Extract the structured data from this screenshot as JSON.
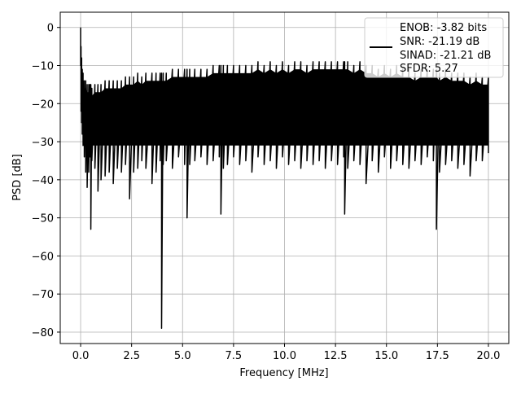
{
  "chart_data": {
    "type": "line",
    "xlabel": "Frequency [MHz]",
    "ylabel": "PSD [dB]",
    "xlim": [
      -1.0,
      21.0
    ],
    "ylim": [
      -83.0,
      4.0
    ],
    "xticks": [
      0.0,
      2.5,
      5.0,
      7.5,
      10.0,
      12.5,
      15.0,
      17.5,
      20.0
    ],
    "xtick_labels": [
      "0.0",
      "2.5",
      "5.0",
      "7.5",
      "10.0",
      "12.5",
      "15.0",
      "17.5",
      "20.0"
    ],
    "yticks": [
      0,
      -10,
      -20,
      -30,
      -40,
      -50,
      -60,
      -70,
      -80
    ],
    "ytick_labels": [
      "0",
      "−10",
      "−20",
      "−30",
      "−40",
      "−50",
      "−60",
      "−70",
      "−80"
    ],
    "grid": true,
    "legend_placement": "top-right",
    "legend_entries": [
      "ENOB: -3.82 bits",
      "SNR: -21.19 dB",
      "SINAD: -21.21 dB",
      "SFDR: 5.27"
    ],
    "series": [
      {
        "color": "#000000",
        "x": [
          0.0,
          0.02,
          0.05,
          0.08,
          0.12,
          0.18,
          0.25,
          0.32,
          0.4,
          0.45,
          0.5,
          0.55,
          0.7,
          0.85,
          1.0,
          1.2,
          1.4,
          1.6,
          1.8,
          2.0,
          2.2,
          2.4,
          2.6,
          2.8,
          3.0,
          3.2,
          3.5,
          3.7,
          3.9,
          3.97,
          4.05,
          4.2,
          4.5,
          4.8,
          5.1,
          5.22,
          5.35,
          5.6,
          5.9,
          6.2,
          6.5,
          6.8,
          6.88,
          7.0,
          7.2,
          7.5,
          7.8,
          8.1,
          8.4,
          8.7,
          9.0,
          9.3,
          9.6,
          9.9,
          10.2,
          10.5,
          10.8,
          11.1,
          11.4,
          11.7,
          12.0,
          12.3,
          12.6,
          12.9,
          12.95,
          13.1,
          13.4,
          13.7,
          14.0,
          14.3,
          14.6,
          14.9,
          15.2,
          15.5,
          15.8,
          16.1,
          16.4,
          16.7,
          17.0,
          17.3,
          17.45,
          17.6,
          17.9,
          18.2,
          18.5,
          18.8,
          19.1,
          19.4,
          19.7,
          20.0
        ],
        "upper": [
          0.0,
          -5,
          -8,
          -11,
          -12,
          -14,
          -14,
          -15,
          -15,
          -15,
          -15,
          -16,
          -15,
          -15,
          -15,
          -14,
          -14,
          -14,
          -14,
          -14,
          -13,
          -13,
          -13,
          -12,
          -13,
          -12,
          -12,
          -12,
          -12,
          -12,
          -12,
          -12,
          -11,
          -11,
          -11,
          -11,
          -11,
          -11,
          -11,
          -11,
          -10,
          -10,
          -10,
          -10,
          -10,
          -10,
          -10,
          -10,
          -10,
          -9,
          -10,
          -9,
          -10,
          -9,
          -10,
          -9,
          -9,
          -10,
          -9,
          -9,
          -9,
          -9,
          -9,
          -9,
          -9,
          -9,
          -10,
          -9,
          -10,
          -10,
          -11,
          -10,
          -11,
          -10,
          -11,
          -11,
          -12,
          -11,
          -11,
          -11,
          -11,
          -12,
          -11,
          -12,
          -12,
          -12,
          -13,
          -12,
          -13,
          -13
        ],
        "lower": [
          -10,
          -22,
          -25,
          -28,
          -31,
          -34,
          -38,
          -42,
          -38,
          -34,
          -53,
          -35,
          -37,
          -43,
          -40,
          -39,
          -38,
          -41,
          -37,
          -38,
          -36,
          -45,
          -38,
          -37,
          -35,
          -37,
          -41,
          -38,
          -35,
          -79,
          -36,
          -35,
          -37,
          -34,
          -36,
          -50,
          -36,
          -35,
          -34,
          -36,
          -35,
          -34,
          -49,
          -37,
          -36,
          -34,
          -36,
          -35,
          -38,
          -34,
          -36,
          -35,
          -37,
          -34,
          -36,
          -35,
          -37,
          -35,
          -36,
          -35,
          -37,
          -35,
          -36,
          -34,
          -49,
          -37,
          -35,
          -36,
          -41,
          -35,
          -38,
          -34,
          -37,
          -35,
          -36,
          -37,
          -35,
          -36,
          -34,
          -35,
          -53,
          -38,
          -36,
          -35,
          -37,
          -36,
          -39,
          -35,
          -35,
          -33
        ]
      }
    ]
  }
}
